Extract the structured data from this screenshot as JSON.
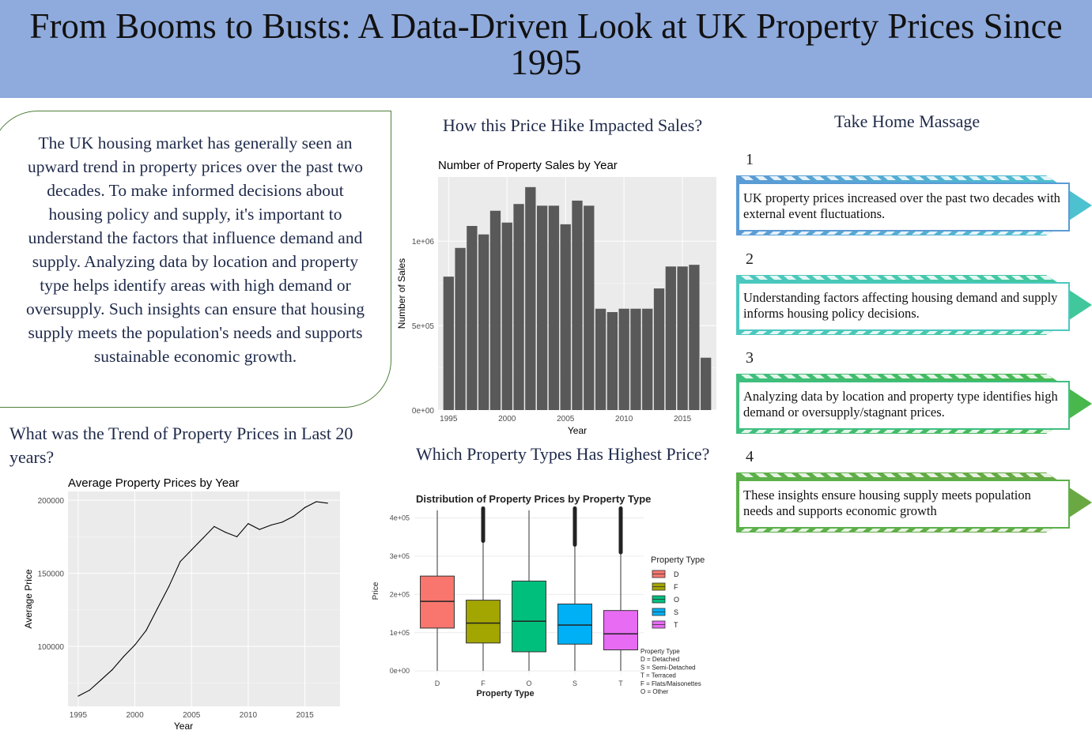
{
  "header": {
    "title": "From Booms to Busts: A Data-Driven Look at UK Property Prices Since 1995"
  },
  "intro": {
    "text": "The UK housing market has generally seen an upward trend in property prices over the past two decades. To make informed decisions about housing policy and supply, it's important to understand the factors that influence demand and supply. Analyzing data by location and property type helps identify areas with high demand or oversupply. Such insights can ensure that housing supply meets the population's needs and supports sustainable economic growth."
  },
  "headings": {
    "trend": "What was the Trend of Property Prices in Last 20 years?",
    "sales": "How this Price Hike Impacted Sales?",
    "types": "Which Property Types Has Highest Price?",
    "takehome": "Take Home Massage"
  },
  "takeaways": [
    {
      "num": "1",
      "text": "UK property prices increased over the past two decades with external event fluctuations.",
      "color": "#5b9bd5",
      "tip": "#4cc3d0"
    },
    {
      "num": "2",
      "text": "Understanding factors affecting housing demand and supply informs housing policy decisions.",
      "color": "#4cc8c0",
      "tip": "#3fc79a"
    },
    {
      "num": "3",
      "text": "Analyzing data by location and property type identifies high demand or oversupply/stagnant prices.",
      "color": "#3fbf7f",
      "tip": "#48b74a"
    },
    {
      "num": "4",
      "text": "These insights ensure housing supply meets population needs and supports economic growth",
      "color": "#5bb04a",
      "tip": "#6aa842"
    }
  ],
  "colors": {
    "banner": "#8faadc",
    "heading_text": "#1f2a4a",
    "intro_border": "#4f7f3a",
    "panel_bg": "#ebebeb",
    "bar_fill": "#595959"
  },
  "chart_data": [
    {
      "id": "sales",
      "type": "bar",
      "title": "Number of Property Sales by Year",
      "xlabel": "Year",
      "ylabel": "Number of Sales",
      "x": [
        1995,
        1996,
        1997,
        1998,
        1999,
        2000,
        2001,
        2002,
        2003,
        2004,
        2005,
        2006,
        2007,
        2008,
        2009,
        2010,
        2011,
        2012,
        2013,
        2014,
        2015,
        2016,
        2017
      ],
      "values": [
        790000,
        960000,
        1090000,
        1040000,
        1180000,
        1110000,
        1220000,
        1320000,
        1210000,
        1210000,
        1100000,
        1240000,
        1210000,
        600000,
        580000,
        600000,
        600000,
        600000,
        720000,
        850000,
        850000,
        860000,
        310000
      ],
      "xticks": [
        1995,
        2000,
        2005,
        2010,
        2015
      ],
      "xtick_labels": [
        "1995",
        "2000",
        "2005",
        "2010",
        "2015"
      ],
      "yticks": [
        0,
        500000,
        1000000
      ],
      "ytick_labels": [
        "0e+00",
        "5e+05",
        "1e+06"
      ],
      "xlim": [
        1994.1,
        2017.9
      ],
      "ylim": [
        0,
        1380000
      ],
      "grid": true
    },
    {
      "id": "prices",
      "type": "line",
      "title": "Average Property Prices by Year",
      "xlabel": "Year",
      "ylabel": "Average Price",
      "x": [
        1995,
        1996,
        1997,
        1998,
        1999,
        2000,
        2001,
        2002,
        2003,
        2004,
        2005,
        2006,
        2007,
        2008,
        2009,
        2010,
        2011,
        2012,
        2013,
        2014,
        2015,
        2016,
        2017
      ],
      "values": [
        66000,
        70000,
        77000,
        84000,
        93000,
        101000,
        111000,
        126000,
        141000,
        158000,
        166000,
        174000,
        182000,
        178000,
        175000,
        184000,
        180000,
        183000,
        185000,
        189000,
        195000,
        199000,
        198000
      ],
      "xticks": [
        1995,
        2000,
        2005,
        2010,
        2015
      ],
      "xtick_labels": [
        "1995",
        "2000",
        "2005",
        "2010",
        "2015"
      ],
      "yticks": [
        100000,
        150000,
        200000
      ],
      "ytick_labels": [
        "100000",
        "150000",
        "200000"
      ],
      "xlim": [
        1994.1,
        2018.1
      ],
      "ylim": [
        59000,
        206000
      ],
      "grid": true
    },
    {
      "id": "types",
      "type": "boxplot",
      "title": "Distribution of Property Prices by Property Type",
      "xlabel": "Property Type",
      "ylabel": "Price",
      "categories": [
        "D",
        "F",
        "O",
        "S",
        "T"
      ],
      "colors": [
        "#f8766d",
        "#a3a500",
        "#00bf7d",
        "#00b0f6",
        "#e76bf3"
      ],
      "boxes": [
        {
          "q1": 112000,
          "median": 182000,
          "q3": 248000,
          "lower": 0,
          "upper": 420000,
          "outliers": false
        },
        {
          "q1": 73000,
          "median": 125000,
          "q3": 185000,
          "lower": 0,
          "upper": 340000,
          "outliers": true
        },
        {
          "q1": 50000,
          "median": 130000,
          "q3": 235000,
          "lower": 0,
          "upper": 420000,
          "outliers": false
        },
        {
          "q1": 70000,
          "median": 120000,
          "q3": 175000,
          "lower": 0,
          "upper": 330000,
          "outliers": true
        },
        {
          "q1": 55000,
          "median": 97000,
          "q3": 158000,
          "lower": 0,
          "upper": 310000,
          "outliers": true
        }
      ],
      "yticks": [
        0,
        100000,
        200000,
        300000,
        400000
      ],
      "ytick_labels": [
        "0e+00",
        "1e+05",
        "2e+05",
        "3e+05",
        "4e+05"
      ],
      "ylim": [
        -10000,
        428000
      ],
      "legend_title": "Property Type",
      "legend_position": "right",
      "caption": [
        "Property Type",
        "D = Detached",
        "S = Semi-Detached",
        "T = Terraced",
        "F = Flats/Maisonettes",
        "O = Other"
      ]
    }
  ]
}
